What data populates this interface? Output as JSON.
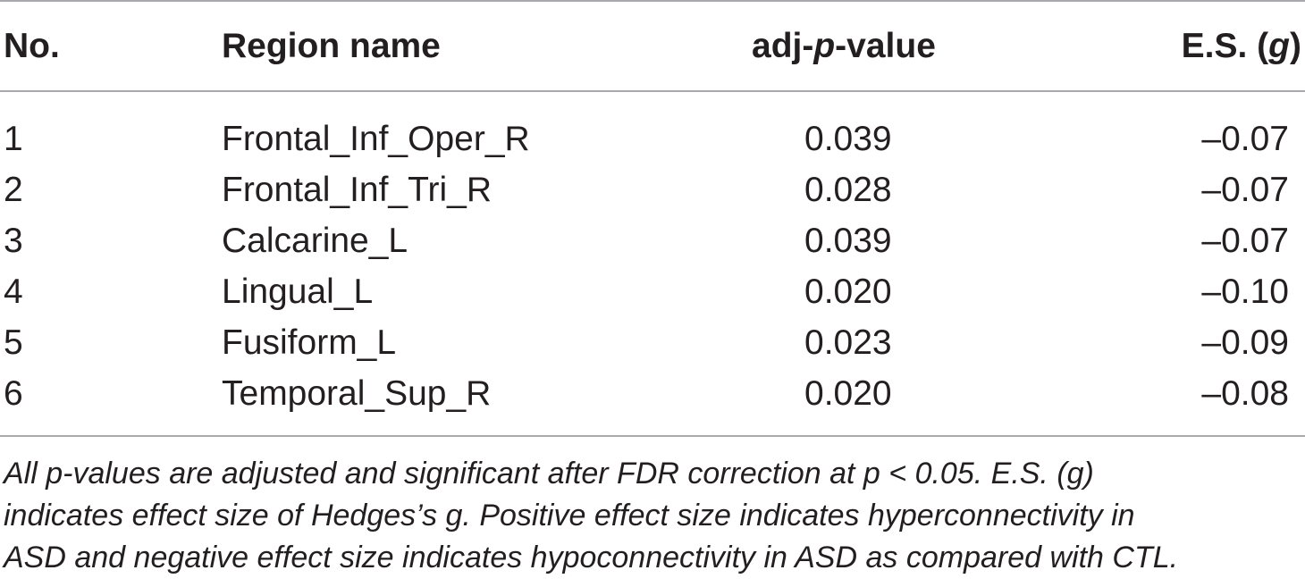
{
  "table": {
    "headers": {
      "no": "No.",
      "region": "Region name",
      "p_prefix": "adj-",
      "p_italic": "p",
      "p_suffix": "-value",
      "es_prefix": "E.S. (",
      "es_italic": "g",
      "es_suffix": ")"
    },
    "rows": [
      {
        "no": "1",
        "region": "Frontal_Inf_Oper_R",
        "p": "0.039",
        "es": "–0.07"
      },
      {
        "no": "2",
        "region": "Frontal_Inf_Tri_R",
        "p": "0.028",
        "es": "–0.07"
      },
      {
        "no": "3",
        "region": "Calcarine_L",
        "p": "0.039",
        "es": "–0.07"
      },
      {
        "no": "4",
        "region": "Lingual_L",
        "p": "0.020",
        "es": "–0.10"
      },
      {
        "no": "5",
        "region": "Fusiform_L",
        "p": "0.023",
        "es": "–0.09"
      },
      {
        "no": "6",
        "region": "Temporal_Sup_R",
        "p": "0.020",
        "es": "–0.08"
      }
    ],
    "footnote_lines": [
      "All p-values are adjusted and significant after FDR correction at p < 0.05. E.S. (g)",
      "indicates effect size of Hedges’s g. Positive effect size indicates hyperconnectivity in",
      "ASD and negative effect size indicates hypoconnectivity in ASD as compared with CTL."
    ]
  }
}
